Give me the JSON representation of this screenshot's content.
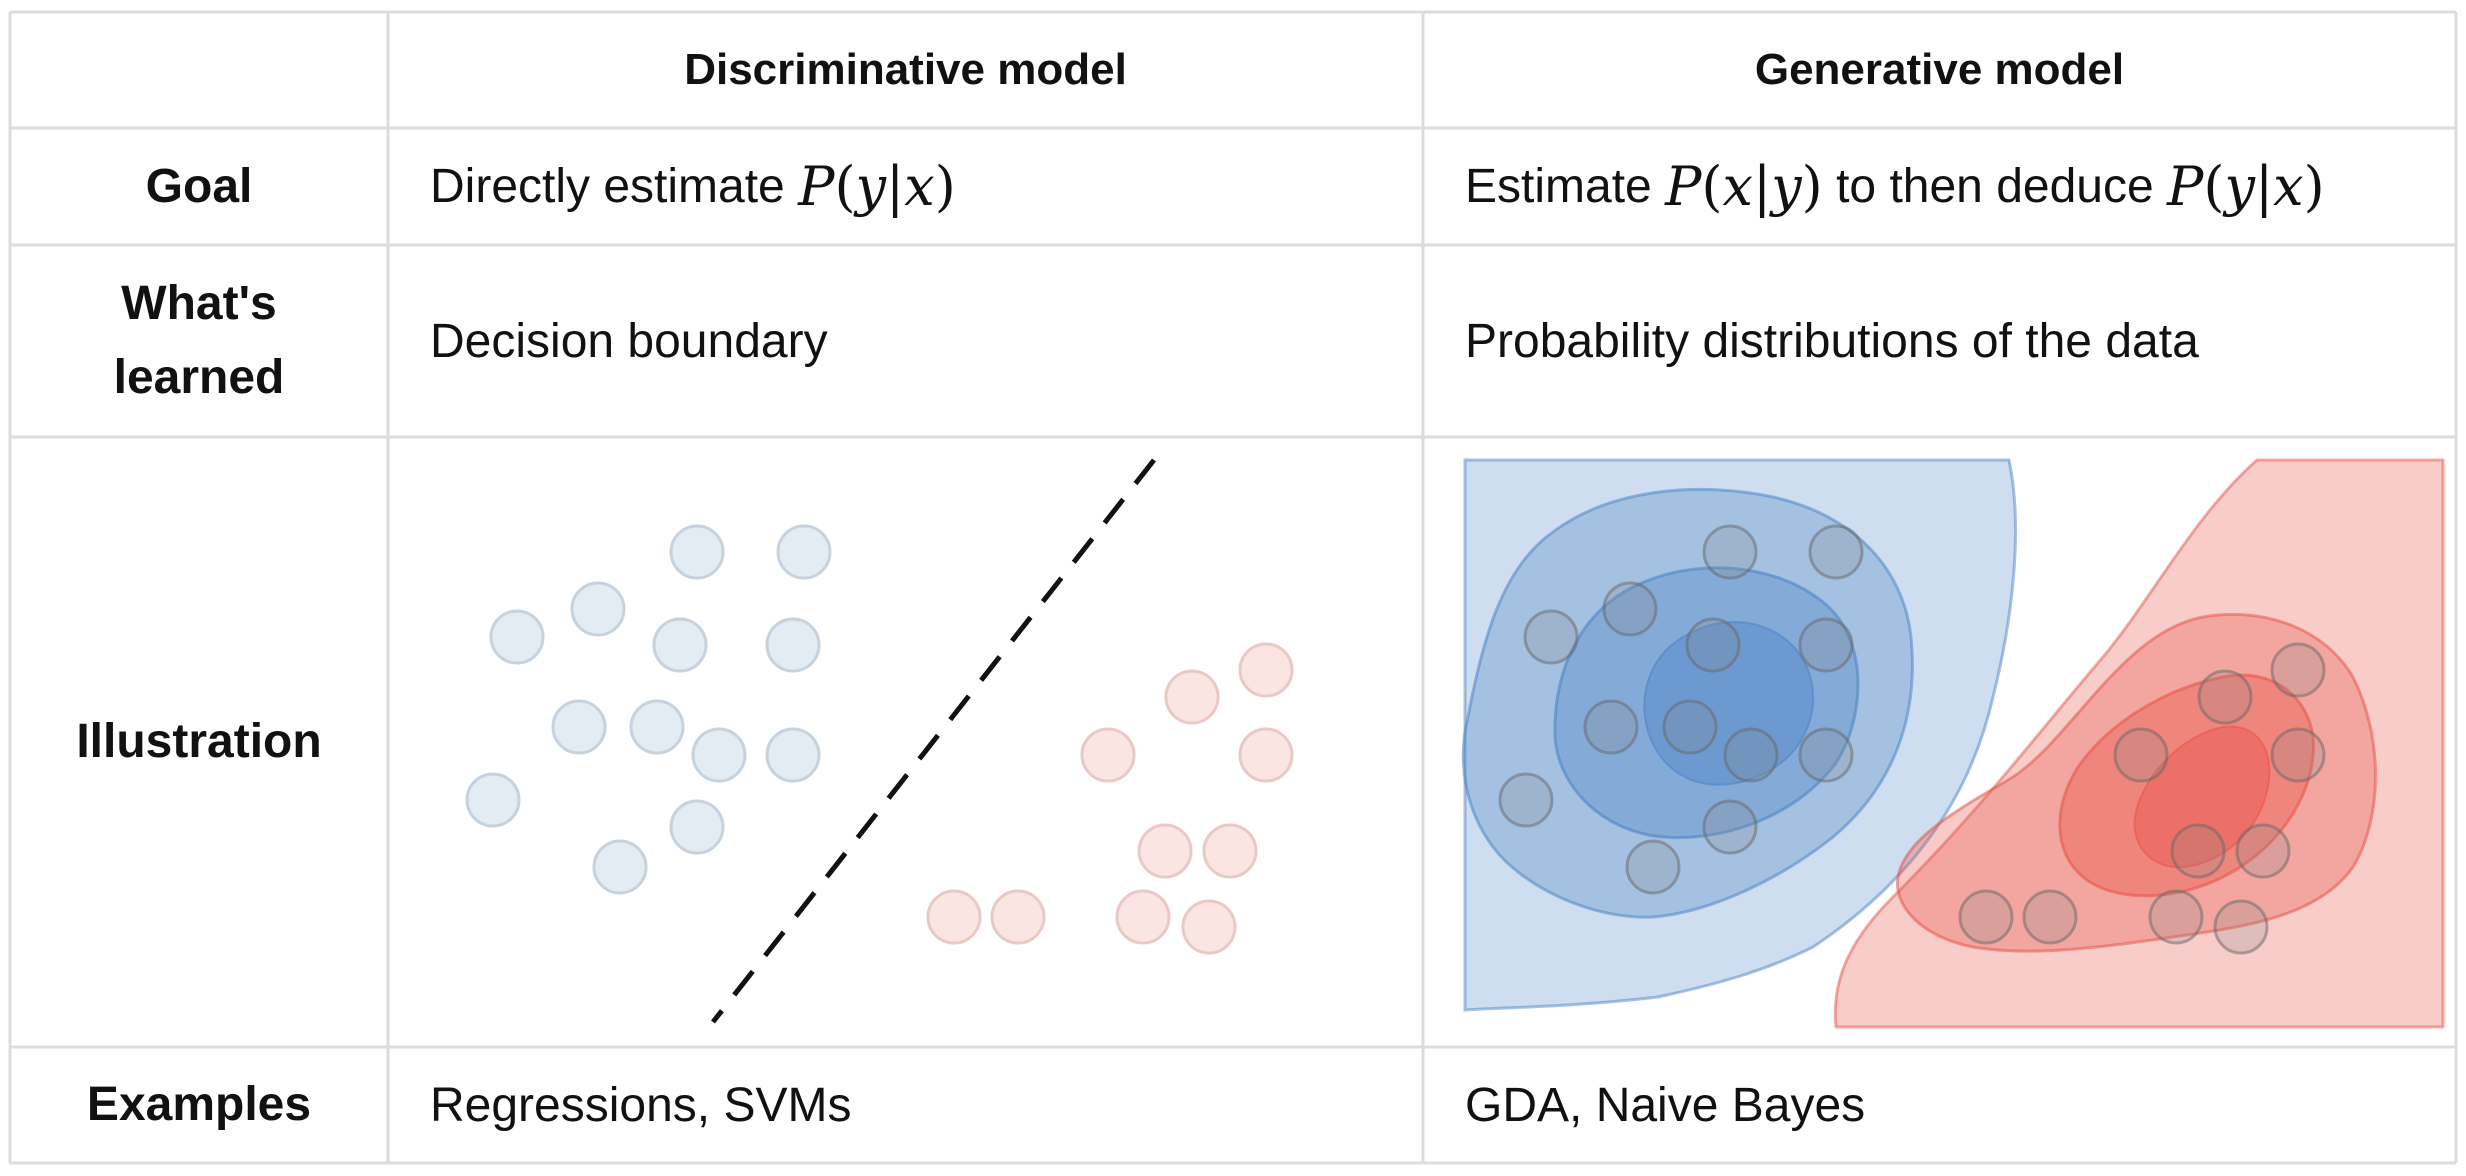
{
  "header": {
    "discriminative": "Discriminative model",
    "generative": "Generative model"
  },
  "rows": {
    "goal": {
      "label": "Goal",
      "disc_text": "Directly estimate ",
      "disc_math": {
        "fn": "P",
        "open": "(",
        "a": "y",
        "bar": "|",
        "b": "x",
        "close": ")"
      },
      "gen_prefix": "Estimate ",
      "gen_math1": {
        "fn": "P",
        "open": "(",
        "a": "x",
        "bar": "|",
        "b": "y",
        "close": ")"
      },
      "gen_middle": " to then deduce ",
      "gen_math2": {
        "fn": "P",
        "open": "(",
        "a": "y",
        "bar": "|",
        "b": "x",
        "close": ")"
      }
    },
    "learned": {
      "label_line1": "What's",
      "label_line2": "learned",
      "disc": "Decision boundary",
      "gen": "Probability distributions of the data"
    },
    "illustration": {
      "label": "Illustration"
    },
    "examples": {
      "label": "Examples",
      "disc": "Regressions, SVMs",
      "gen": "GDA, Naive Bayes"
    }
  },
  "colors": {
    "grid": "#dcdcdc",
    "blue_point_fill": "#e3ebf3",
    "blue_point_stroke": "#c7d2dd",
    "red_point_fill": "#fbe5e3",
    "red_point_stroke": "#e8c9c6",
    "blue_region": "#4f86c6",
    "red_region": "#e8574c",
    "boundary": "#111111"
  }
}
